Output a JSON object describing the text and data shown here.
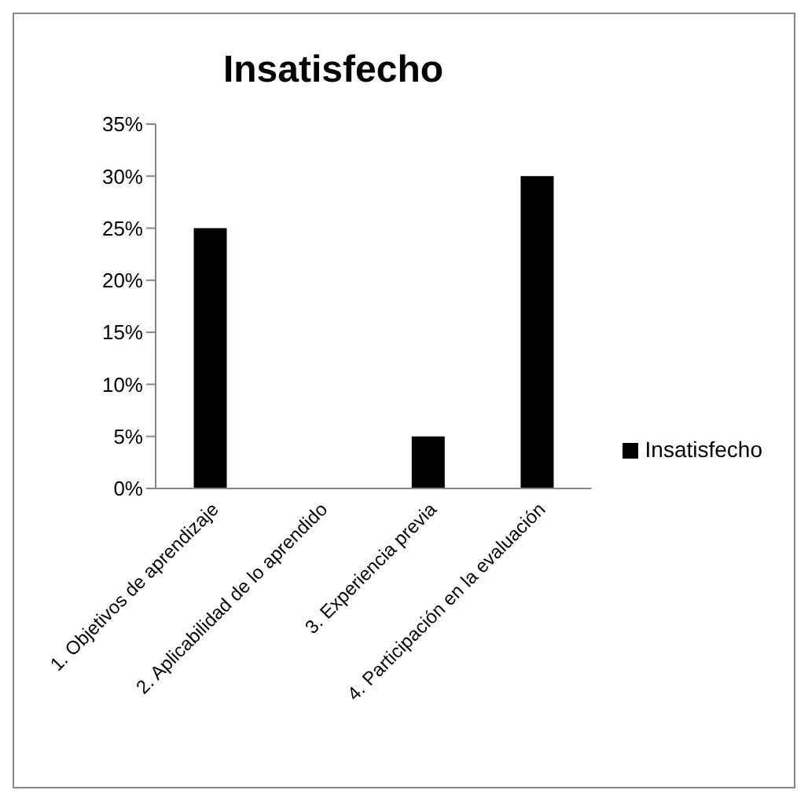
{
  "chart_data": {
    "type": "bar",
    "title": "Insatisfecho",
    "categories": [
      "1. Objetivos de aprendizaje",
      "2. Aplicabilidad de lo aprendido",
      "3. Experiencia previa",
      "4. Participación en la evaluación"
    ],
    "series": [
      {
        "name": "Insatisfecho",
        "color": "#000000",
        "values": [
          25,
          0,
          5,
          30
        ]
      }
    ],
    "ylim": [
      0,
      35
    ],
    "yticks": [
      {
        "value": 0,
        "label": "0%"
      },
      {
        "value": 5,
        "label": "5%"
      },
      {
        "value": 10,
        "label": "10%"
      },
      {
        "value": 15,
        "label": "15%"
      },
      {
        "value": 20,
        "label": "20%"
      },
      {
        "value": 25,
        "label": "25%"
      },
      {
        "value": 30,
        "label": "30%"
      },
      {
        "value": 35,
        "label": "35%"
      }
    ],
    "grid": false,
    "legend": "right"
  }
}
